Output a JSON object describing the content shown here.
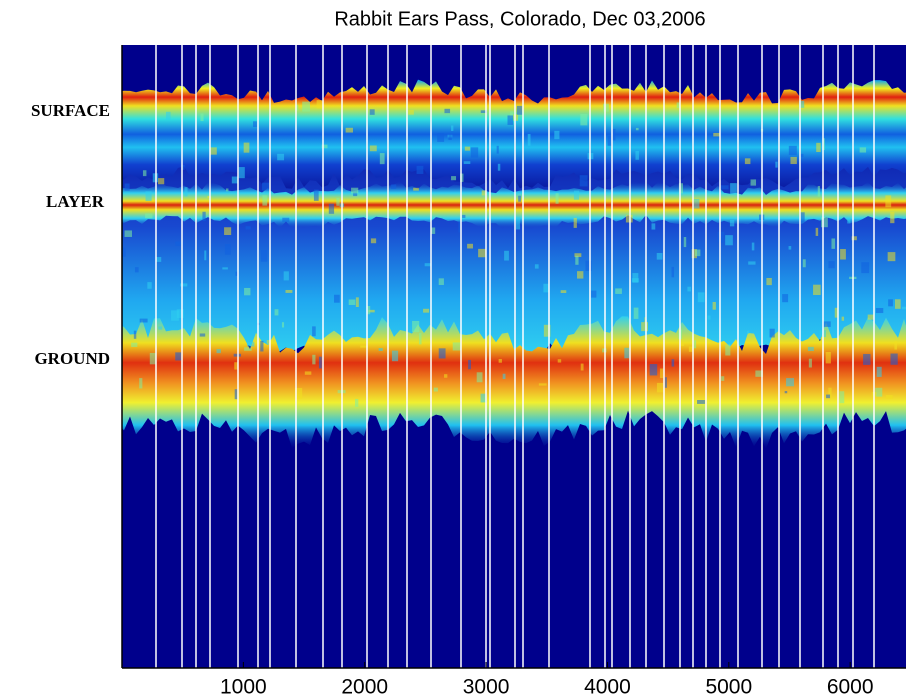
{
  "chart_data": {
    "type": "image",
    "title": "Rabbit Ears Pass, Colorado, Dec 03,2006",
    "xlim": [
      0,
      6460
    ],
    "xticks": [
      1000,
      2000,
      3000,
      4000,
      5000,
      6000
    ],
    "annotations": [
      "SURFACE",
      "LAYER",
      "GROUND"
    ]
  }
}
